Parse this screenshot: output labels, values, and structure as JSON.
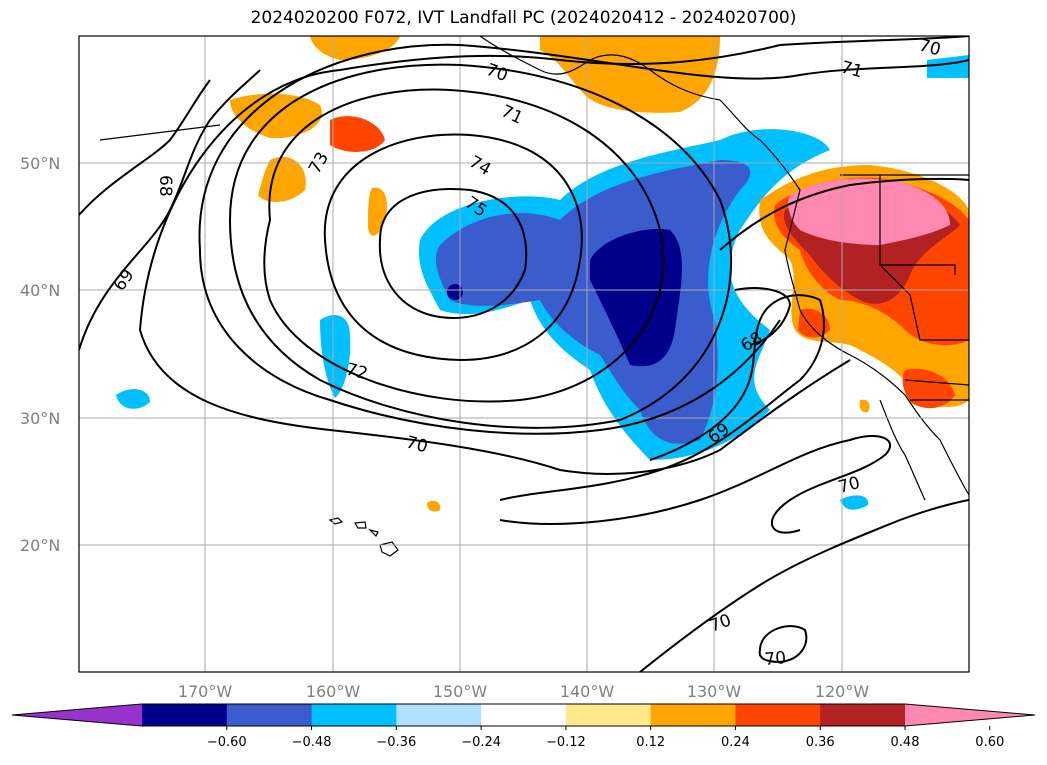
{
  "title": "2024020200 F072, IVT Landfall PC (2024020412 - 2024020700)",
  "map": {
    "lat_labels": [
      "50°N",
      "40°N",
      "30°N",
      "20°N"
    ],
    "lon_labels": [
      "170°W",
      "160°W",
      "150°W",
      "140°W",
      "130°W",
      "120°W"
    ],
    "contour_labels": [
      "70",
      "71",
      "74",
      "75",
      "73",
      "68",
      "69",
      "72",
      "70",
      "68",
      "69",
      "70",
      "70",
      "70",
      "70",
      "71"
    ]
  },
  "colorbar": {
    "ticks": [
      "−0.60",
      "−0.48",
      "−0.36",
      "−0.24",
      "−0.12",
      "0.12",
      "0.24",
      "0.36",
      "0.48",
      "0.60"
    ],
    "colors": [
      "#9932cc",
      "#00008b",
      "#3a5ccc",
      "#00bfff",
      "#b0e0ff",
      "#ffffff",
      "#ffe98a",
      "#ffa500",
      "#ff4500",
      "#b22222",
      "#ff88b0"
    ]
  }
}
